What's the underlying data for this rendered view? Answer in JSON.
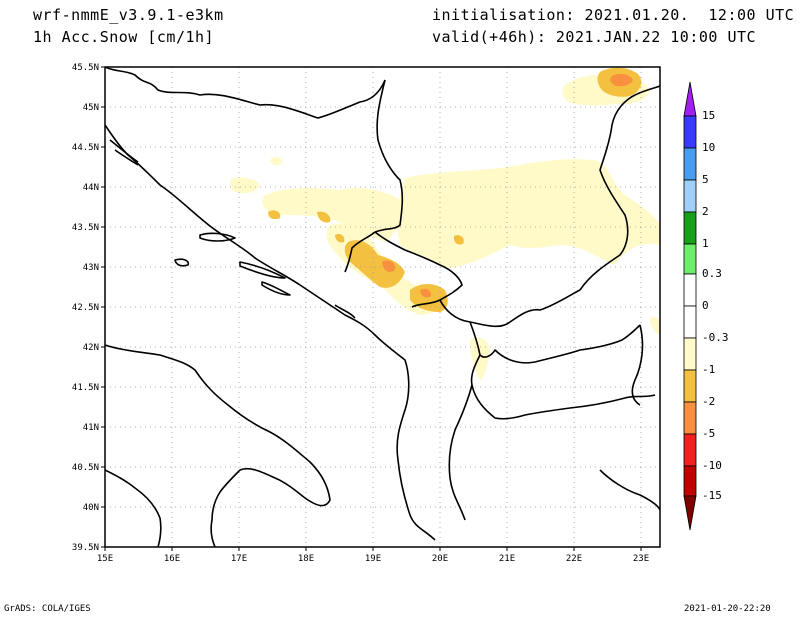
{
  "header": {
    "model": "wrf-nmmE_v3.9.1-e3km",
    "field": "1h Acc.Snow [cm/1h]",
    "init": "initialisation: 2021.01.20.  12:00 UTC",
    "valid": "valid(+46h): 2021.JAN.22 10:00 UTC"
  },
  "footer": {
    "left": "GrADS: COLA/IGES",
    "right": "2021-01-20-22:20"
  },
  "axes": {
    "lon_ticks": [
      "15E",
      "16E",
      "17E",
      "18E",
      "19E",
      "20E",
      "21E",
      "22E",
      "23E"
    ],
    "lat_ticks": [
      "45.5N",
      "45N",
      "44.5N",
      "44N",
      "43.5N",
      "43N",
      "42.5N",
      "42N",
      "41.5N",
      "41N",
      "40.5N",
      "40N",
      "39.5N"
    ],
    "lon_range": [
      15,
      23.3
    ],
    "lat_range": [
      39.5,
      45.5
    ]
  },
  "colorbar": {
    "labels": [
      "15",
      "10",
      "5",
      "2",
      "1",
      "0.3",
      "0",
      "-0.3",
      "-1",
      "-2",
      "-5",
      "-10",
      "-15"
    ],
    "colors": [
      "#a020f0",
      "#3a3aff",
      "#4a9cf0",
      "#a0d0f8",
      "#18a018",
      "#6cf06c",
      "#ffffff",
      "#ffffff",
      "#fffac8",
      "#f4c040",
      "#f89040",
      "#f02020",
      "#c00000",
      "#800000"
    ]
  },
  "snow_colors": {
    "light": "#fffac8",
    "medium": "#f4c040",
    "heavy": "#f89040"
  }
}
